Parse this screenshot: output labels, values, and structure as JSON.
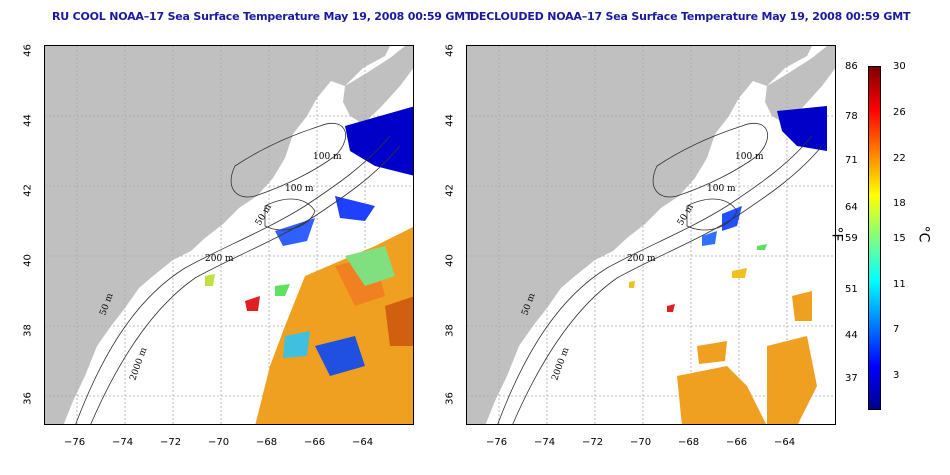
{
  "titles": {
    "left": "RU COOL NOAA–17 Sea Surface Temperature May 19, 2008 00:59 GMT",
    "right": "DECLOUDED NOAA–17 Sea Surface Temperature May 19, 2008 00:59 GMT"
  },
  "axes": {
    "lon_ticks": [
      "−76",
      "−74",
      "−72",
      "−70",
      "−68",
      "−66",
      "−64"
    ],
    "lat_ticks": [
      "46",
      "44",
      "42",
      "40",
      "38",
      "36"
    ]
  },
  "contours": {
    "left": [
      "100 m",
      "100 m",
      "50 m",
      "200 m",
      "50 m",
      "2000 m"
    ],
    "right": [
      "100 m",
      "100 m",
      "50 m",
      "200 m",
      "50 m",
      "2000 m"
    ]
  },
  "colorbar": {
    "fahrenheit": [
      "86",
      "78",
      "71",
      "64",
      "59",
      "51",
      "44",
      "37"
    ],
    "celsius": [
      "30",
      "26",
      "22",
      "18",
      "15",
      "11",
      "7",
      "3"
    ],
    "unit_f": "°F",
    "unit_c": "°C",
    "colors": [
      "#00008f",
      "#0000ff",
      "#0080ff",
      "#00ffff",
      "#80ff80",
      "#ffff00",
      "#ff8000",
      "#ff0000",
      "#800000"
    ]
  },
  "colors": {
    "land": "#c0c0c0",
    "grid": "#aaaaaa",
    "title": "#1a1aa0"
  }
}
